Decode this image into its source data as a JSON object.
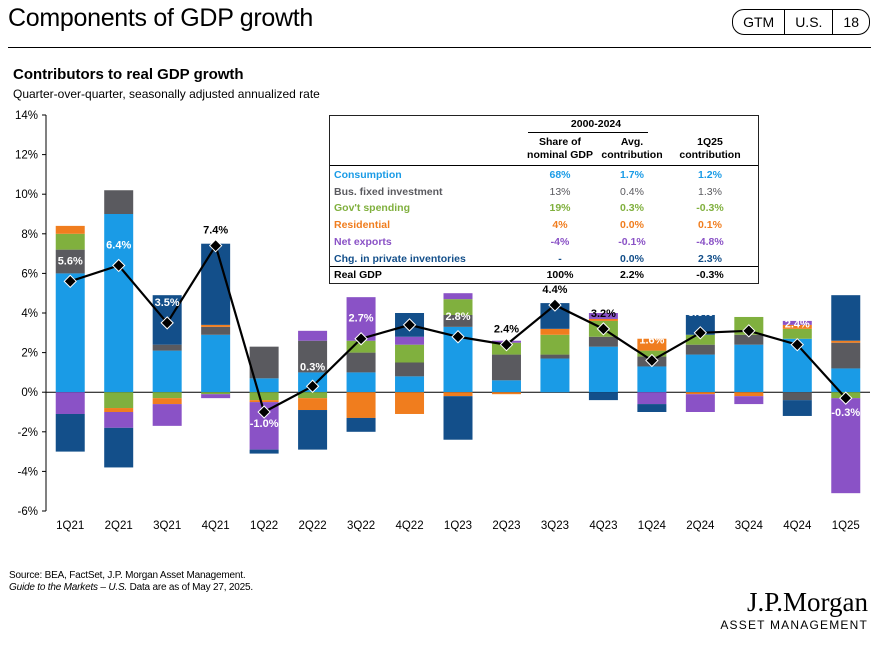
{
  "header": {
    "title": "Components of GDP growth",
    "badges": [
      "GTM",
      "U.S.",
      "18"
    ],
    "subtitle": "Contributors to real GDP growth",
    "subsubtitle": "Quarter-over-quarter, seasonally adjusted annualized rate"
  },
  "colors": {
    "consumption": "#1a9be6",
    "investment": "#5a5a5f",
    "govt": "#80b03e",
    "residential": "#f07d1e",
    "net_exports": "#8a52c6",
    "inventories": "#134f8a",
    "real_gdp": "#000000"
  },
  "table": {
    "period_header": "2000-2024",
    "col1_header": [
      "Share of",
      "nominal GDP"
    ],
    "col2_header": [
      "Avg.",
      "contribution"
    ],
    "col3_header": [
      "1Q25",
      "contribution"
    ],
    "rows": [
      {
        "label": "Consumption",
        "share": "68%",
        "avg": "1.7%",
        "q": "1.2%",
        "color": "#1a9be6"
      },
      {
        "label": "Bus. fixed investment",
        "share": "13%",
        "avg": "0.4%",
        "q": "1.3%",
        "color": "#5a5a5f"
      },
      {
        "label": "Gov't spending",
        "share": "19%",
        "avg": "0.3%",
        "q": "-0.3%",
        "color": "#80b03e"
      },
      {
        "label": "Residential",
        "share": "4%",
        "avg": "0.0%",
        "q": "0.1%",
        "color": "#f07d1e"
      },
      {
        "label": "Net exports",
        "share": "-4%",
        "avg": "-0.1%",
        "q": "-4.8%",
        "color": "#8a52c6"
      },
      {
        "label": "Chg. in private inventories",
        "share": "-",
        "avg": "0.0%",
        "q": "2.3%",
        "color": "#134f8a"
      },
      {
        "label": "Real GDP",
        "share": "100%",
        "avg": "2.2%",
        "q": "-0.3%",
        "color": "#000000"
      }
    ]
  },
  "chart_data": {
    "type": "bar",
    "stacked": true,
    "categories": [
      "1Q21",
      "2Q21",
      "3Q21",
      "4Q21",
      "1Q22",
      "2Q22",
      "3Q22",
      "4Q22",
      "1Q23",
      "2Q23",
      "3Q23",
      "4Q23",
      "1Q24",
      "2Q24",
      "3Q24",
      "4Q24",
      "1Q25"
    ],
    "ylim": [
      -6,
      14
    ],
    "yticks": [
      -6,
      -4,
      -2,
      0,
      2,
      4,
      6,
      8,
      10,
      12,
      14
    ],
    "ytick_labels": [
      "-6%",
      "-4%",
      "-2%",
      "0%",
      "2%",
      "4%",
      "6%",
      "8%",
      "10%",
      "12%",
      "14%"
    ],
    "series": [
      {
        "name": "Consumption",
        "key": "consumption",
        "values": [
          6.0,
          9.0,
          2.1,
          2.9,
          0.7,
          1.0,
          1.0,
          0.8,
          3.3,
          0.6,
          1.7,
          2.3,
          1.3,
          1.9,
          2.4,
          2.7,
          1.2
        ]
      },
      {
        "name": "Bus. fixed investment",
        "key": "investment",
        "values": [
          1.2,
          1.2,
          0.3,
          0.4,
          1.6,
          1.6,
          1.0,
          0.7,
          0.6,
          1.3,
          0.2,
          0.5,
          0.5,
          0.5,
          0.5,
          -0.4,
          1.3
        ]
      },
      {
        "name": "Gov't spending",
        "key": "govt",
        "values": [
          0.8,
          -0.8,
          -0.3,
          -0.1,
          -0.4,
          -0.3,
          0.6,
          0.9,
          0.8,
          0.6,
          1.0,
          0.8,
          0.3,
          0.5,
          0.9,
          0.5,
          -0.3
        ]
      },
      {
        "name": "Residential",
        "key": "residential",
        "values": [
          0.4,
          -0.2,
          -0.3,
          0.1,
          -0.1,
          -0.6,
          -1.3,
          -1.1,
          -0.2,
          -0.1,
          0.3,
          0.1,
          0.6,
          -0.1,
          -0.2,
          0.2,
          0.1
        ]
      },
      {
        "name": "Net exports",
        "key": "net_exports",
        "values": [
          -1.1,
          -0.8,
          -1.1,
          -0.2,
          -2.4,
          0.5,
          2.2,
          0.4,
          0.3,
          0.1,
          0.0,
          0.3,
          -0.6,
          -0.9,
          -0.4,
          0.2,
          -4.8
        ]
      },
      {
        "name": "Chg. in private inventories",
        "key": "inventories",
        "values": [
          -1.9,
          -2.0,
          2.5,
          4.1,
          -0.2,
          -2.0,
          -0.7,
          1.2,
          -2.2,
          0.0,
          1.3,
          -0.4,
          -0.4,
          1.0,
          0.0,
          -0.8,
          2.3
        ]
      }
    ],
    "real_gdp": {
      "name": "Real GDP",
      "values": [
        5.6,
        6.4,
        3.5,
        7.4,
        -1.0,
        0.3,
        2.7,
        3.4,
        2.8,
        2.4,
        4.4,
        3.2,
        1.6,
        3.0,
        3.1,
        2.4,
        -0.3
      ]
    },
    "gdp_labels": [
      "5.6%",
      "6.4%",
      "3.5%",
      "7.4%",
      "-1.0%",
      "0.3%",
      "2.7%",
      "3.4%",
      "2.8%",
      "2.4%",
      "4.4%",
      "3.2%",
      "1.6%",
      "3.0%",
      "3.1%",
      "2.4%",
      "-0.3%"
    ],
    "gdp_label_styles": [
      "inside",
      "inside",
      "inside",
      "above",
      "inside",
      "inside",
      "inside",
      "inside",
      "inside",
      "above",
      "above",
      "above",
      "inside",
      "inside",
      "inside",
      "inside",
      "inside"
    ],
    "grid": false
  },
  "footer": {
    "source_line1": "Source: BEA, FactSet, J.P. Morgan Asset Management.",
    "source_italic": "Guide to the Markets – U.S.",
    "source_line2_rest": " Data are as of May 27, 2025.",
    "logo_name": "J.P.Morgan",
    "logo_sub": "ASSET MANAGEMENT"
  }
}
